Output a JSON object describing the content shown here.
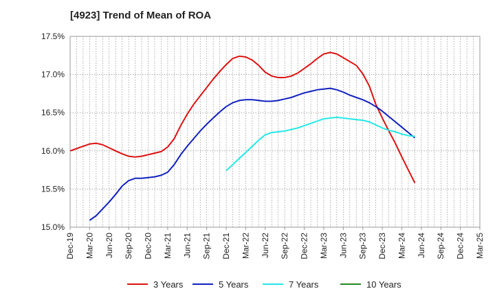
{
  "chart_data": {
    "type": "line",
    "title": "[4923]  Trend of Mean of ROA",
    "xlabel": "",
    "ylabel": "",
    "ylim": [
      15.0,
      17.5
    ],
    "y_ticks": [
      "15.0%",
      "15.5%",
      "16.0%",
      "16.5%",
      "17.0%",
      "17.5%"
    ],
    "y_tick_values": [
      15.0,
      15.5,
      16.0,
      16.5,
      17.0,
      17.5
    ],
    "x_tick_labels": [
      "Dec-19",
      "Mar-20",
      "Jun-20",
      "Sep-20",
      "Dec-20",
      "Mar-21",
      "Jun-21",
      "Sep-21",
      "Dec-21",
      "Mar-22",
      "Jun-22",
      "Sep-22",
      "Dec-22",
      "Mar-23",
      "Jun-23",
      "Sep-23",
      "Dec-23",
      "Mar-24",
      "Jun-24",
      "Sep-24",
      "Dec-24",
      "Mar-25"
    ],
    "grid": true,
    "legend_position": "bottom",
    "series": [
      {
        "name": "3 Years",
        "color": "#dd1111",
        "values": [
          16.0,
          16.03,
          16.06,
          16.09,
          16.1,
          16.08,
          16.04,
          16.0,
          15.96,
          15.93,
          15.92,
          15.93,
          15.95,
          15.97,
          15.99,
          16.05,
          16.16,
          16.33,
          16.48,
          16.61,
          16.72,
          16.83,
          16.94,
          17.04,
          17.13,
          17.21,
          17.24,
          17.23,
          17.19,
          17.12,
          17.03,
          16.98,
          16.96,
          16.96,
          16.98,
          17.02,
          17.08,
          17.14,
          17.21,
          17.27,
          17.29,
          17.27,
          17.22,
          17.17,
          17.12,
          17.01,
          16.85,
          16.61,
          16.43,
          16.26,
          16.1,
          15.92,
          15.75,
          15.58
        ]
      },
      {
        "name": "5 Years",
        "color": "#1020c0",
        "values": [
          null,
          null,
          null,
          15.09,
          15.15,
          15.24,
          15.33,
          15.43,
          15.54,
          15.61,
          15.64,
          15.64,
          15.65,
          15.66,
          15.68,
          15.72,
          15.82,
          15.95,
          16.06,
          16.16,
          16.26,
          16.35,
          16.43,
          16.51,
          16.58,
          16.63,
          16.66,
          16.67,
          16.67,
          16.66,
          16.65,
          16.65,
          16.66,
          16.68,
          16.7,
          16.73,
          16.76,
          16.78,
          16.8,
          16.81,
          16.82,
          16.8,
          16.77,
          16.73,
          16.7,
          16.67,
          16.63,
          16.58,
          16.52,
          16.45,
          16.38,
          16.31,
          16.24,
          16.17
        ]
      },
      {
        "name": "7 Years",
        "color": "#22e8e8",
        "values": [
          null,
          null,
          null,
          null,
          null,
          null,
          null,
          null,
          null,
          null,
          null,
          null,
          null,
          null,
          null,
          null,
          null,
          null,
          null,
          null,
          null,
          null,
          null,
          null,
          15.74,
          15.82,
          15.9,
          15.98,
          16.06,
          16.14,
          16.21,
          16.24,
          16.25,
          16.26,
          16.28,
          16.3,
          16.33,
          16.36,
          16.39,
          16.42,
          16.43,
          16.44,
          16.43,
          16.42,
          16.41,
          16.4,
          16.38,
          16.34,
          16.3,
          16.27,
          16.25,
          16.22,
          16.2,
          16.19
        ]
      },
      {
        "name": "10 Years",
        "color": "#228822",
        "values": []
      }
    ]
  }
}
